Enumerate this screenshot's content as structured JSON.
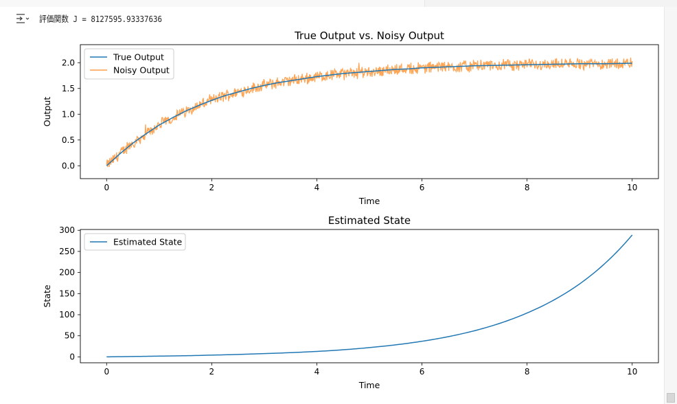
{
  "cell": {
    "output_toggle_icon": "output-toggle-icon",
    "log_text": "評価関数 J = 8127595.93337636"
  },
  "colors": {
    "true_output": "#1f77b4",
    "noisy_output": "#ff7f0e",
    "estimated_state": "#1f77b4"
  },
  "chart_data": [
    {
      "type": "line",
      "title": "True Output vs. Noisy Output",
      "xlabel": "Time",
      "ylabel": "Output",
      "xlim": [
        -0.5,
        10.5
      ],
      "ylim": [
        -0.25,
        2.35
      ],
      "xticks": [
        0,
        2,
        4,
        6,
        8,
        10
      ],
      "xtick_labels": [
        "0",
        "2",
        "4",
        "6",
        "8",
        "10"
      ],
      "yticks": [
        0.0,
        0.5,
        1.0,
        1.5,
        2.0
      ],
      "ytick_labels": [
        "0.0",
        "0.5",
        "1.0",
        "1.5",
        "2.0"
      ],
      "legend": "top-left",
      "series": [
        {
          "name": "True Output",
          "x": [
            0,
            0.25,
            0.5,
            0.75,
            1,
            1.25,
            1.5,
            1.75,
            2,
            2.25,
            2.5,
            2.75,
            3,
            3.25,
            3.5,
            3.75,
            4,
            4.25,
            4.5,
            4.75,
            5,
            5.25,
            5.5,
            5.75,
            6,
            6.5,
            7,
            7.5,
            8,
            8.5,
            9,
            9.5,
            10
          ],
          "y": [
            0.0,
            0.23,
            0.44,
            0.62,
            0.79,
            0.93,
            1.06,
            1.17,
            1.27,
            1.36,
            1.43,
            1.5,
            1.56,
            1.61,
            1.65,
            1.69,
            1.73,
            1.76,
            1.79,
            1.81,
            1.83,
            1.85,
            1.87,
            1.88,
            1.9,
            1.92,
            1.94,
            1.95,
            1.96,
            1.97,
            1.98,
            1.98,
            1.99
          ]
        },
        {
          "name": "Noisy Output",
          "x": [
            0,
            0.25,
            0.5,
            0.75,
            1,
            1.25,
            1.5,
            1.75,
            2,
            2.25,
            2.5,
            2.75,
            3,
            3.25,
            3.5,
            3.75,
            4,
            4.25,
            4.5,
            4.75,
            5,
            5.25,
            5.5,
            5.75,
            6,
            6.5,
            7,
            7.5,
            8,
            8.5,
            9,
            9.5,
            10
          ],
          "y": [
            0.0,
            0.23,
            0.44,
            0.62,
            0.79,
            0.93,
            1.06,
            1.17,
            1.27,
            1.36,
            1.43,
            1.5,
            1.56,
            1.61,
            1.65,
            1.69,
            1.73,
            1.76,
            1.79,
            1.81,
            1.83,
            1.85,
            1.87,
            1.88,
            1.9,
            1.92,
            1.94,
            1.95,
            1.96,
            1.97,
            1.98,
            1.98,
            1.99
          ],
          "noise_amplitude": 0.1,
          "noise_range": [
            -0.17,
            0.28
          ]
        }
      ]
    },
    {
      "type": "line",
      "title": "Estimated State",
      "xlabel": "Time",
      "ylabel": "State",
      "xlim": [
        -0.5,
        10.5
      ],
      "ylim": [
        -14,
        302
      ],
      "xticks": [
        0,
        2,
        4,
        6,
        8,
        10
      ],
      "xtick_labels": [
        "0",
        "2",
        "4",
        "6",
        "8",
        "10"
      ],
      "yticks": [
        0,
        50,
        100,
        150,
        200,
        250,
        300
      ],
      "ytick_labels": [
        "0",
        "50",
        "100",
        "150",
        "200",
        "250",
        "300"
      ],
      "legend": "top-left",
      "series": [
        {
          "name": "Estimated State",
          "x": [
            0,
            1,
            2,
            3,
            4,
            5,
            6,
            7,
            8,
            9,
            10
          ],
          "y": [
            0.0,
            1.8,
            4.2,
            7.8,
            12.9,
            22,
            37,
            62,
            104,
            173,
            289
          ]
        }
      ]
    }
  ]
}
